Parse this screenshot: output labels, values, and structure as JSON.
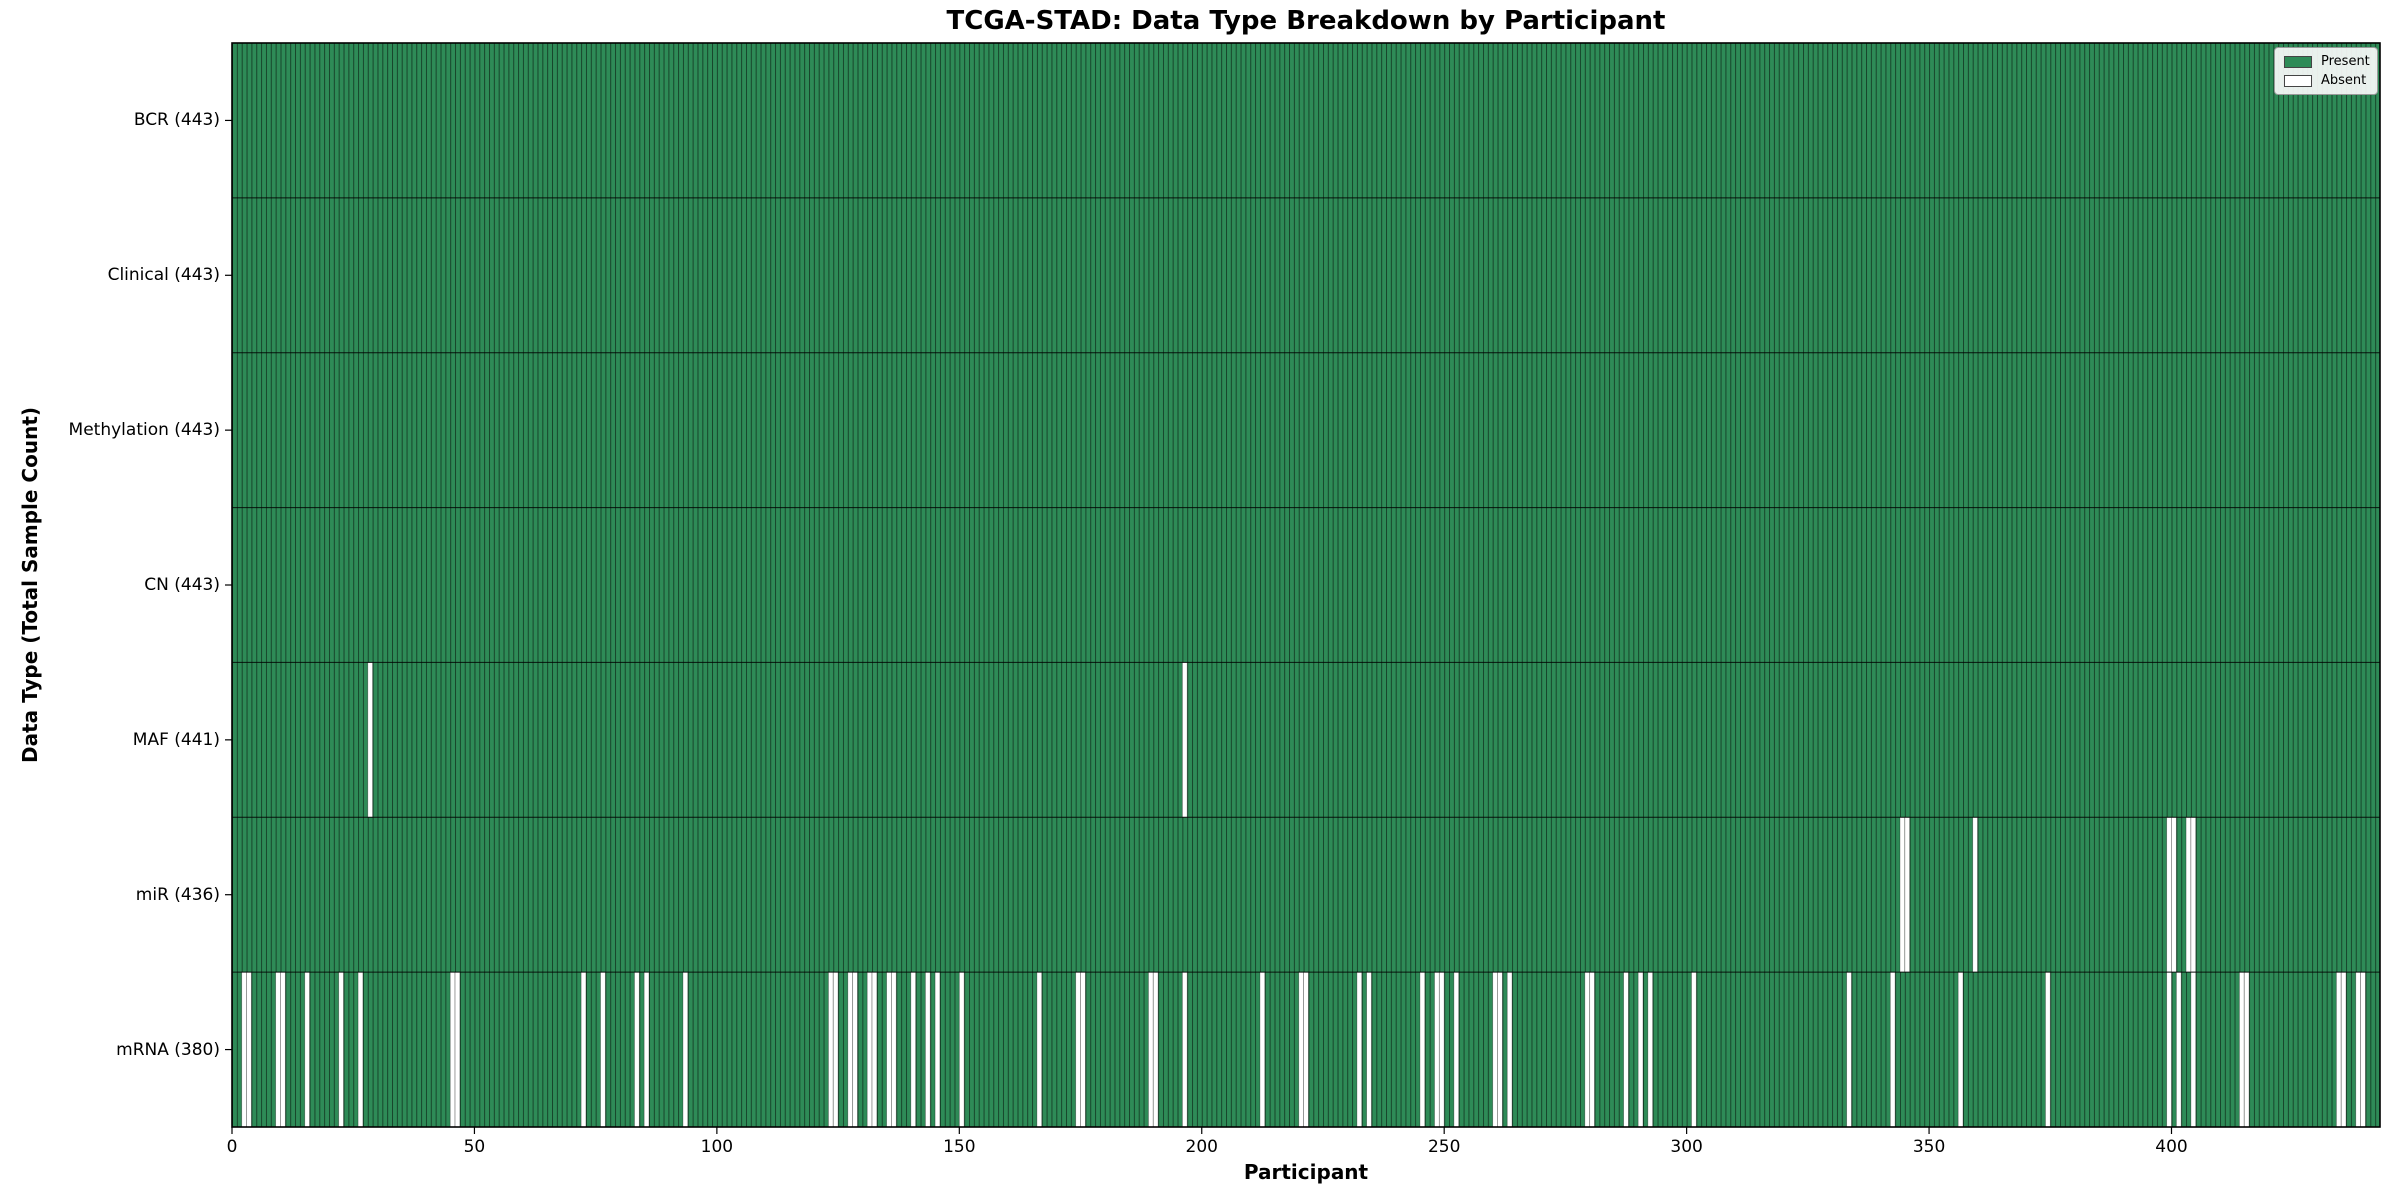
{
  "chart_data": {
    "type": "heatmap",
    "title": "TCGA-STAD: Data Type Breakdown by Participant",
    "xlabel": "Participant",
    "ylabel": "Data Type (Total Sample Count)",
    "n_participants": 443,
    "present_color": "#2e8b57",
    "absent_color": "#ffffff",
    "cell_edge_color": "rgba(0,0,0,0.5)",
    "row_divider_color": "rgba(0,0,0,0.85)",
    "legend": [
      {
        "label": "Present",
        "color": "#2e8b57"
      },
      {
        "label": "Absent",
        "color": "#ffffff"
      }
    ],
    "x_ticks": [
      {
        "value": 0,
        "label": "0"
      },
      {
        "value": 50,
        "label": "50"
      },
      {
        "value": 100,
        "label": "100"
      },
      {
        "value": 150,
        "label": "150"
      },
      {
        "value": 200,
        "label": "200"
      },
      {
        "value": 250,
        "label": "250"
      },
      {
        "value": 300,
        "label": "300"
      },
      {
        "value": 350,
        "label": "350"
      },
      {
        "value": 400,
        "label": "400"
      }
    ],
    "rows": [
      {
        "label": "BCR",
        "total": 443,
        "tick_label": "BCR (443)",
        "missing": []
      },
      {
        "label": "Clinical",
        "total": 443,
        "tick_label": "Clinical (443)",
        "missing": []
      },
      {
        "label": "Methylation",
        "total": 443,
        "tick_label": "Methylation (443)",
        "missing": []
      },
      {
        "label": "CN",
        "total": 443,
        "tick_label": "CN (443)",
        "missing": []
      },
      {
        "label": "MAF",
        "total": 441,
        "tick_label": "MAF (441)",
        "missing": [
          28,
          196
        ]
      },
      {
        "label": "miR",
        "total": 436,
        "tick_label": "miR (436)",
        "missing": [
          344,
          345,
          359,
          399,
          400,
          403,
          404
        ]
      },
      {
        "label": "mRNA",
        "total": 380,
        "tick_label": "mRNA (380)",
        "missing": [
          2,
          3,
          9,
          10,
          15,
          22,
          26,
          45,
          46,
          72,
          76,
          83,
          85,
          93,
          123,
          124,
          127,
          128,
          131,
          132,
          135,
          136,
          140,
          143,
          145,
          150,
          166,
          174,
          175,
          189,
          190,
          196,
          212,
          220,
          221,
          232,
          234,
          245,
          248,
          249,
          252,
          260,
          261,
          263,
          279,
          280,
          287,
          290,
          292,
          301,
          333,
          342,
          356,
          374,
          399,
          401,
          404,
          414,
          415,
          434,
          435,
          438,
          439
        ]
      }
    ]
  }
}
